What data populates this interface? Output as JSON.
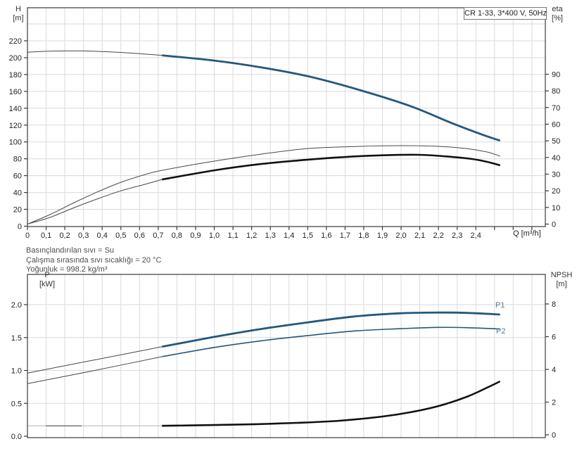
{
  "title_box": "CR 1-33, 3*400 V, 50Hz",
  "info_lines": [
    "Basınçlandırılan sıvı = Su",
    "Çalışma sırasında sıvı sıcaklığı = 20 °C",
    "Yoğunluk = 998.2 kg/m³"
  ],
  "axis_labels": {
    "top_left_1": "H",
    "top_left_2": "[m]",
    "top_right_1": "eta",
    "top_right_2": "[%]",
    "x_label": "Q [m³/h]",
    "bottom_left_1": "P",
    "bottom_left_2": "[kW]",
    "bottom_right_1": "NPSH",
    "bottom_right_2": "[m]"
  },
  "series_labels": {
    "p1": "P1",
    "p2": "P2"
  },
  "colors": {
    "blue": "#24587c",
    "black": "#111111",
    "thin": "#474747",
    "light": "#b4b4b4",
    "grid": "#dadade",
    "axis": "#3a3a3a",
    "label_blue": "#567891"
  },
  "chart_data": [
    {
      "id": "top",
      "type": "line",
      "title": "CR 1-33, 3*400 V, 50Hz",
      "xlabel": "Q [m³/h]",
      "x_tick_step": 0.1,
      "x_tick_labels": [
        "0",
        "0,1",
        "0,2",
        "0,3",
        "0,4",
        "0,5",
        "0,6",
        "0,7",
        "0,8",
        "0,9",
        "1,0",
        "1,1",
        "1,2",
        "1,3",
        "1,4",
        "1,5",
        "1,6",
        "1,7",
        "1,8",
        "1,9",
        "2,0",
        "2,1",
        "2,2",
        "2,3",
        "2,4"
      ],
      "x_extra_ticks": [
        2.5,
        2.6,
        2.7
      ],
      "xlim": [
        0,
        2.77
      ],
      "left_axis": {
        "label": "H [m]",
        "lim": [
          0,
          260
        ],
        "tick_labels": [
          "0",
          "20",
          "40",
          "60",
          "80",
          "100",
          "120",
          "140",
          "160",
          "180",
          "200",
          "220"
        ],
        "grid_values": [
          20,
          40,
          60,
          80,
          100,
          120,
          140,
          160,
          180,
          200,
          220,
          240
        ]
      },
      "right_axis": {
        "label": "eta [%]",
        "lim": [
          0,
          90
        ],
        "tick_labels": [
          "0",
          "10",
          "20",
          "30",
          "40",
          "50",
          "60",
          "70",
          "80",
          "90"
        ]
      },
      "series": [
        {
          "name": "H thin extension",
          "axis": "left",
          "style": "thin",
          "points": [
            [
              0,
              206.5
            ],
            [
              0.1,
              207.6
            ],
            [
              0.2,
              208
            ],
            [
              0.3,
              208
            ],
            [
              0.4,
              207.3
            ],
            [
              0.5,
              206.2
            ],
            [
              0.6,
              204.7
            ],
            [
              0.72,
              202.8
            ]
          ]
        },
        {
          "name": "H",
          "axis": "left",
          "style": "blue_thick",
          "points": [
            [
              0.72,
              202.8
            ],
            [
              1,
              196.5
            ],
            [
              1.25,
              188.5
            ],
            [
              1.5,
              178
            ],
            [
              1.78,
              161.5
            ],
            [
              2.05,
              142.5
            ],
            [
              2.27,
              122.5
            ],
            [
              2.43,
              109
            ],
            [
              2.53,
              101.5
            ]
          ]
        },
        {
          "name": "eta upper thin",
          "axis": "right",
          "style": "thin",
          "points": [
            [
              0,
              0
            ],
            [
              0.12,
              5.7
            ],
            [
              0.25,
              12.9
            ],
            [
              0.38,
              19.6
            ],
            [
              0.5,
              25.1
            ],
            [
              0.63,
              29.8
            ],
            [
              0.72,
              32.3
            ],
            [
              1,
              37.8
            ],
            [
              1.25,
              42
            ],
            [
              1.5,
              45.4
            ],
            [
              1.78,
              46.7
            ],
            [
              2,
              47.1
            ],
            [
              2.2,
              46.7
            ],
            [
              2.35,
              45.4
            ],
            [
              2.46,
              43.3
            ],
            [
              2.53,
              40.8
            ]
          ]
        },
        {
          "name": "eta thin extension",
          "axis": "right",
          "style": "thin",
          "points": [
            [
              0,
              0
            ],
            [
              0.12,
              4
            ],
            [
              0.25,
              9.9
            ],
            [
              0.38,
              15.4
            ],
            [
              0.5,
              20
            ],
            [
              0.63,
              23.9
            ],
            [
              0.72,
              26.8
            ]
          ]
        },
        {
          "name": "eta",
          "axis": "right",
          "style": "black_thick",
          "points": [
            [
              0.72,
              26.8
            ],
            [
              1,
              32.3
            ],
            [
              1.25,
              36.1
            ],
            [
              1.5,
              38.7
            ],
            [
              1.78,
              40.8
            ],
            [
              2.09,
              41.6
            ],
            [
              2.35,
              39.5
            ],
            [
              2.46,
              37.4
            ],
            [
              2.53,
              35.3
            ]
          ]
        }
      ]
    },
    {
      "id": "bottom",
      "type": "line",
      "xlim": [
        0,
        2.77
      ],
      "left_axis": {
        "label": "P [kW]",
        "lim": [
          0,
          2.46
        ],
        "tick_labels": [
          "0.0",
          "0.5",
          "1.0",
          "1.5",
          "2.0"
        ],
        "grid_values": [
          0.5,
          1,
          1.5,
          2
        ]
      },
      "right_axis": {
        "label": "NPSH [m]",
        "lim": [
          0,
          8
        ],
        "tick_labels": [
          "0",
          "2",
          "4",
          "6",
          "8"
        ]
      },
      "series": [
        {
          "name": "P1 thin extension",
          "axis": "left",
          "style": "thin",
          "points": [
            [
              0,
              0.96
            ],
            [
              0.36,
              1.16
            ],
            [
              0.72,
              1.36
            ]
          ]
        },
        {
          "name": "P1",
          "axis": "left",
          "style": "blue_thick",
          "points": [
            [
              0.72,
              1.36
            ],
            [
              1,
              1.51
            ],
            [
              1.25,
              1.63
            ],
            [
              1.5,
              1.73
            ],
            [
              1.75,
              1.82
            ],
            [
              2,
              1.87
            ],
            [
              2.2,
              1.88
            ],
            [
              2.35,
              1.875
            ],
            [
              2.53,
              1.85
            ]
          ]
        },
        {
          "name": "P2 thin extension",
          "axis": "left",
          "style": "thin",
          "points": [
            [
              0,
              0.8
            ],
            [
              0.36,
              1
            ],
            [
              0.72,
              1.21
            ]
          ]
        },
        {
          "name": "P2",
          "axis": "left",
          "style": "blue_medium",
          "points": [
            [
              0.72,
              1.21
            ],
            [
              1,
              1.35
            ],
            [
              1.25,
              1.45
            ],
            [
              1.5,
              1.53
            ],
            [
              1.75,
              1.6
            ],
            [
              2,
              1.635
            ],
            [
              2.2,
              1.655
            ],
            [
              2.35,
              1.65
            ],
            [
              2.53,
              1.63
            ]
          ]
        },
        {
          "name": "NPSH light extension",
          "axis": "right",
          "style": "light",
          "points": [
            [
              0,
              0.55
            ],
            [
              0.72,
              0.55
            ]
          ]
        },
        {
          "name": "NPSH dark segment",
          "axis": "right",
          "style": "thin",
          "points": [
            [
              0.1,
              0.55
            ],
            [
              0.29,
              0.55
            ]
          ]
        },
        {
          "name": "NPSH",
          "axis": "right",
          "style": "black_thick",
          "points": [
            [
              0.72,
              0.55
            ],
            [
              1,
              0.6
            ],
            [
              1.22,
              0.65
            ],
            [
              1.44,
              0.73
            ],
            [
              1.67,
              0.86
            ],
            [
              1.9,
              1.12
            ],
            [
              2.05,
              1.38
            ],
            [
              2.2,
              1.76
            ],
            [
              2.35,
              2.32
            ],
            [
              2.46,
              2.88
            ],
            [
              2.53,
              3.27
            ]
          ]
        }
      ]
    }
  ]
}
